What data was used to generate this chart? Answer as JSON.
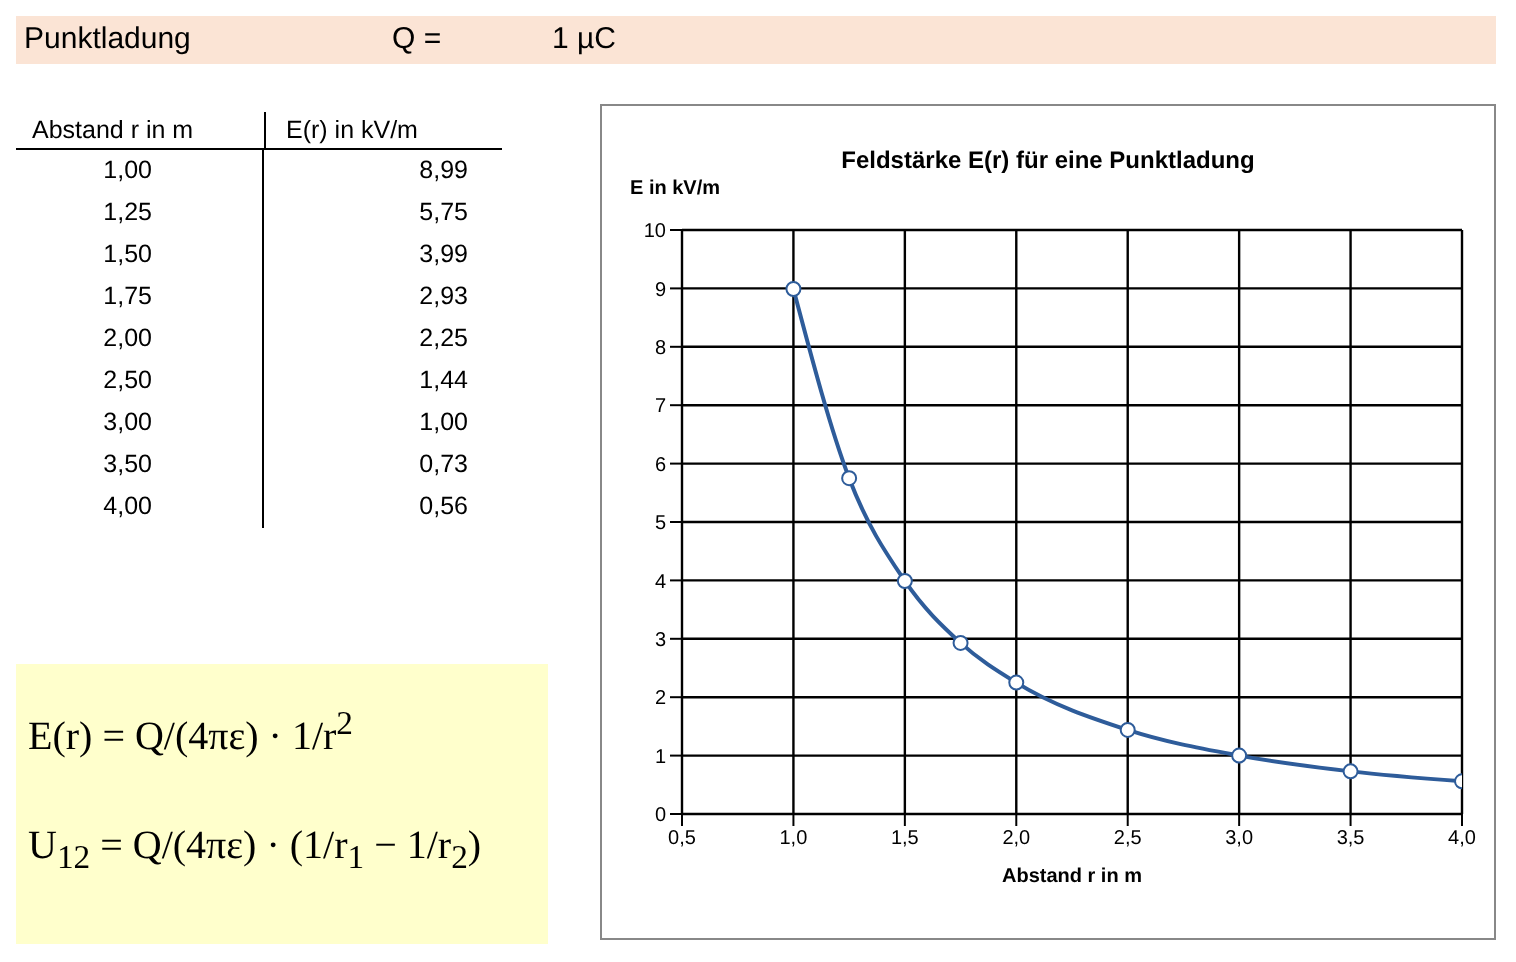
{
  "chart_data": {
    "type": "line",
    "title": "Feldstärke E(r) für eine Punktladung",
    "xlabel": "Abstand r in m",
    "ylabel": "E in kV/m",
    "annotations": [
      "Punktladung",
      "Q =",
      "1 µC",
      "Abstand r in m",
      "E(r) in kV/m",
      "E(r) = Q/(4πε) · 1/r$^{2}$",
      "U$_{12}$ = Q/(4πε) · (1/r$_{1}$ − 1/r$_{2}$)",
      "1,00",
      "1,25",
      "1,50",
      "1,75",
      "2,00",
      "2,50",
      "3,00",
      "3,50",
      "4,00"
    ],
    "x": [
      1,
      1.25,
      1.5,
      1.75,
      2,
      2.5,
      3,
      3.5,
      4
    ],
    "series": [
      {
        "color": "#2e5c9a",
        "values": [
          8.99,
          5.75,
          3.99,
          2.93,
          2.25,
          1.44,
          1.0,
          0.73,
          0.56
        ]
      }
    ],
    "value_labels": [
      "8,99",
      "5,75",
      "3,99",
      "2,93",
      "2,25",
      "1,44",
      "1,00",
      "0,73",
      "0,56"
    ],
    "xlim": [
      0.5,
      4
    ],
    "xticks": [
      {
        "value": 0.5,
        "label": "0,5"
      },
      {
        "value": 1,
        "label": "1,0"
      },
      {
        "value": 1.5,
        "label": "1,5"
      },
      {
        "value": 2,
        "label": "2,0"
      },
      {
        "value": 2.5,
        "label": "2,5"
      },
      {
        "value": 3,
        "label": "3,0"
      },
      {
        "value": 3.5,
        "label": "3,5"
      },
      {
        "value": 4,
        "label": "4,0"
      }
    ],
    "ylim": [
      0,
      10
    ],
    "yticks": [
      0,
      1,
      2,
      3,
      4,
      5,
      6,
      7,
      8,
      9,
      10
    ],
    "grid": true,
    "marker": "circle",
    "line_style": "solid",
    "legend": false
  }
}
